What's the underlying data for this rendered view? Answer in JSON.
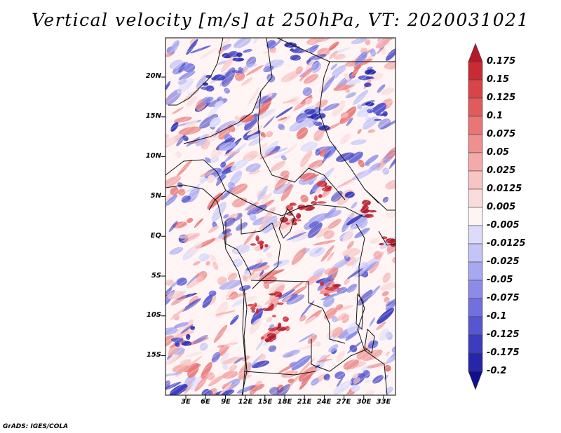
{
  "map": {
    "title": "Vertical velocity [m/s] at 250hPa, VT: 2020031021",
    "variable": "Vertical velocity",
    "units": "m/s",
    "level": "250hPa",
    "valid_time": "2020031021",
    "region": "Central Africa",
    "lat_labels": [
      "20N",
      "15N",
      "10N",
      "5N",
      "EQ",
      "5S",
      "10S",
      "15S"
    ],
    "lon_labels": [
      "3E",
      "6E",
      "9E",
      "12E",
      "15E",
      "18E",
      "21E",
      "24E",
      "27E",
      "30E",
      "33E"
    ],
    "colorbar": {
      "labels": [
        "0.175",
        "0.15",
        "0.125",
        "0.1",
        "0.075",
        "0.05",
        "0.025",
        "0.0125",
        "0.005",
        "-0.005",
        "-0.0125",
        "-0.025",
        "-0.05",
        "-0.075",
        "-0.1",
        "-0.125",
        "-0.175",
        "-0.2"
      ],
      "colors": [
        "#b4182a",
        "#c82a36",
        "#d8444a",
        "#e05c5c",
        "#e87676",
        "#ef9090",
        "#f4aaaa",
        "#f8c4c4",
        "#fbdcdc",
        "#fff4f4",
        "#dcdcfa",
        "#c4c4f6",
        "#a8a8f0",
        "#8c8ce8",
        "#7070de",
        "#5656d0",
        "#3c3cbe",
        "#2626a8",
        "#10108c"
      ]
    }
  },
  "footer": "GrADS: IGES/COLA"
}
